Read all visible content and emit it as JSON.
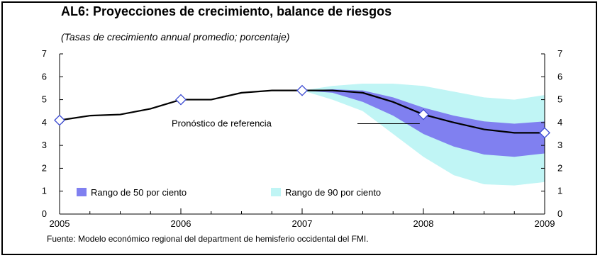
{
  "chart_data": {
    "type": "area",
    "title": "AL6: Proyecciones de crecimiento, balance de riesgos",
    "subtitle": "(Tasas de crecimiento annual promedio; porcentaje)",
    "xlim": [
      2005,
      2009
    ],
    "ylim": [
      0,
      7
    ],
    "x_ticks": [
      "2005",
      "2006",
      "2007",
      "2008",
      "2009"
    ],
    "y_ticks": [
      "0",
      "1",
      "2",
      "3",
      "4",
      "5",
      "6",
      "7"
    ],
    "legend_position": "bottom-left",
    "grid": false,
    "series": [
      {
        "name": "Pronóstico de referencia",
        "color": "#000000",
        "x": [
          2005,
          2005.25,
          2005.5,
          2005.75,
          2006,
          2006.25,
          2006.5,
          2006.75,
          2007,
          2007.25,
          2007.5,
          2007.75,
          2008,
          2008.25,
          2008.5,
          2008.75,
          2009
        ],
        "values": [
          4.1,
          4.3,
          4.35,
          4.6,
          5.0,
          5.0,
          5.3,
          5.4,
          5.4,
          5.4,
          5.3,
          4.9,
          4.35,
          4.0,
          3.7,
          3.55,
          3.55
        ]
      },
      {
        "name": "Rango de 50 por ciento",
        "color": "#8080f0",
        "x": [
          2007,
          2007.25,
          2007.5,
          2007.75,
          2008,
          2008.25,
          2008.5,
          2008.75,
          2009
        ],
        "upper": [
          5.4,
          5.45,
          5.4,
          5.1,
          4.65,
          4.3,
          4.05,
          3.95,
          4.05
        ],
        "lower": [
          5.4,
          5.3,
          4.9,
          4.3,
          3.5,
          2.95,
          2.6,
          2.5,
          2.65
        ]
      },
      {
        "name": "Rango de 90 por ciento",
        "color": "#c0f5f5",
        "x": [
          2007,
          2007.25,
          2007.5,
          2007.75,
          2008,
          2008.25,
          2008.5,
          2008.75,
          2009
        ],
        "upper": [
          5.4,
          5.6,
          5.7,
          5.7,
          5.6,
          5.35,
          5.1,
          5.0,
          5.2
        ],
        "lower": [
          5.4,
          5.0,
          4.5,
          3.5,
          2.5,
          1.7,
          1.3,
          1.25,
          1.4
        ]
      }
    ],
    "markers": {
      "x": [
        2005,
        2006,
        2007,
        2008,
        2009
      ],
      "values": [
        4.1,
        5.0,
        5.4,
        4.35,
        3.55
      ]
    },
    "annotation": "Pronóstico de referencia",
    "source": "Fuente: Modelo económico regional del department de hemisferio occidental del FMI."
  }
}
